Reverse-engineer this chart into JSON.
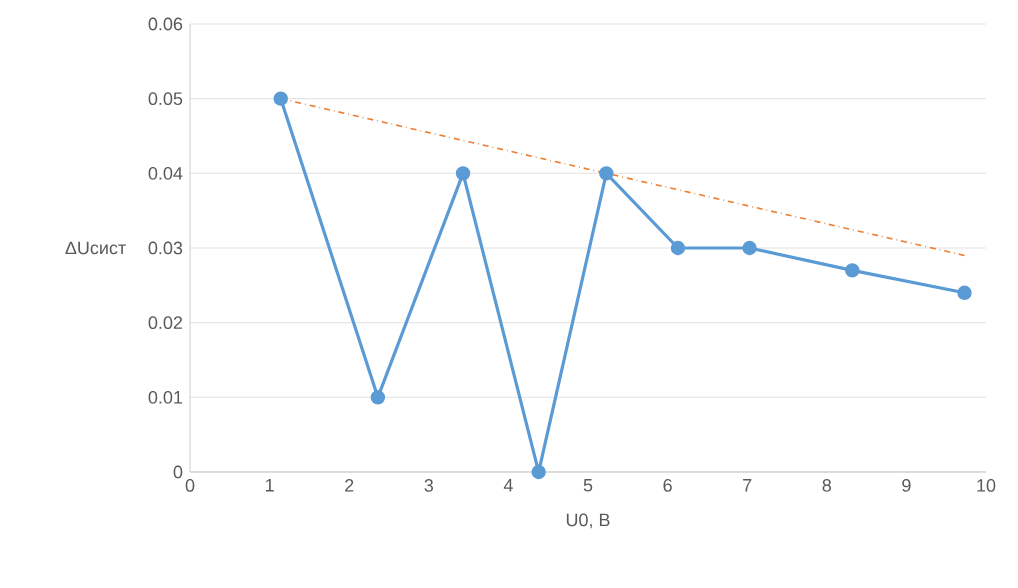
{
  "chart_data": {
    "type": "line",
    "xlabel": "U0, В",
    "ylabel": "ΔUсист",
    "xlim": [
      0,
      10
    ],
    "ylim": [
      0,
      0.06
    ],
    "xticks": [
      0,
      1,
      2,
      3,
      4,
      5,
      6,
      7,
      8,
      9,
      10
    ],
    "yticks": [
      0,
      0.01,
      0.02,
      0.03,
      0.04,
      0.05,
      0.06
    ],
    "grid": "y",
    "series": [
      {
        "color": "#5b9bd5",
        "marker": "circle",
        "line_style": "solid",
        "x": [
          1.14,
          2.36,
          3.43,
          4.38,
          5.23,
          6.13,
          7.03,
          8.32,
          9.73
        ],
        "values": [
          0.05,
          0.01,
          0.04,
          0,
          0.04,
          0.03,
          0.03,
          0.027,
          0.024
        ]
      },
      {
        "color": "#ed7d31",
        "marker": "none",
        "line_style": "dashed",
        "x": [
          1.14,
          9.73
        ],
        "values": [
          0.05,
          0.029
        ]
      }
    ]
  }
}
